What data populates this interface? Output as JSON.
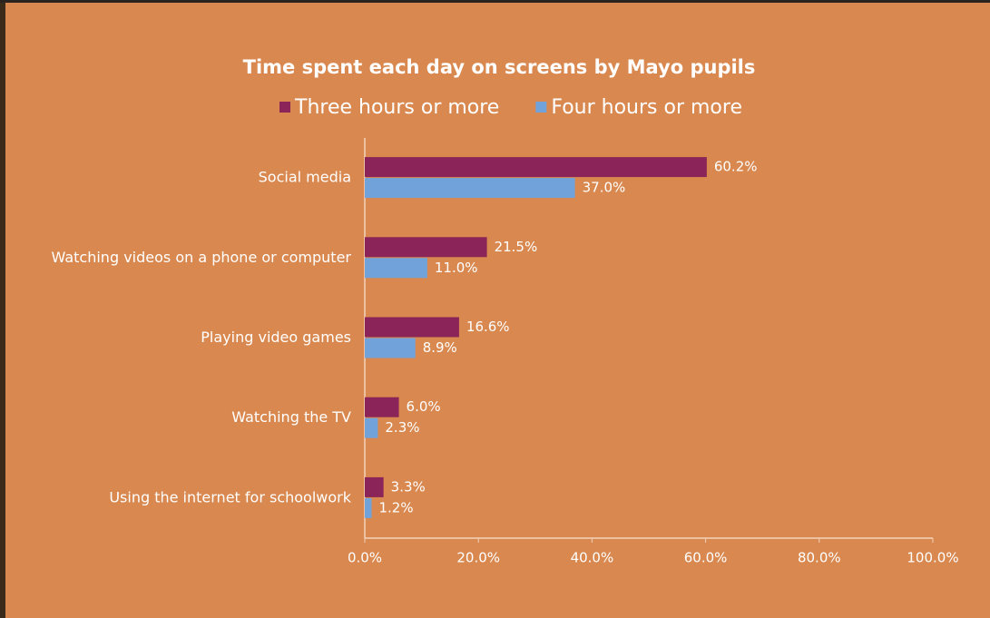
{
  "chart_data": {
    "type": "hbar",
    "title": "Time spent each day on screens by Mayo pupils",
    "categories": [
      "Social media",
      "Watching videos on a phone or computer",
      "Playing video games",
      "Watching the TV",
      "Using the internet for schoolwork"
    ],
    "series": [
      {
        "name": "Three hours or more",
        "color": "#8b2458",
        "values": [
          60.2,
          21.5,
          16.6,
          6.0,
          3.3
        ],
        "value_labels": [
          "60.2%",
          "21.5%",
          "16.6%",
          "6.0%",
          "3.3%"
        ]
      },
      {
        "name": "Four hours or more",
        "color": "#71a3da",
        "values": [
          37.0,
          11.0,
          8.9,
          2.3,
          1.2
        ],
        "value_labels": [
          "37.0%",
          "11.0%",
          "8.9%",
          "2.3%",
          "1.2%"
        ]
      }
    ],
    "xlim": [
      0,
      100
    ],
    "xticks": [
      {
        "value": 0,
        "label": "0.0%"
      },
      {
        "value": 20,
        "label": "20.0%"
      },
      {
        "value": 40,
        "label": "40.0%"
      },
      {
        "value": 60,
        "label": "60.0%"
      },
      {
        "value": 80,
        "label": "80.0%"
      },
      {
        "value": 100,
        "label": "100.0%"
      }
    ],
    "legend": "top",
    "grid": false
  }
}
